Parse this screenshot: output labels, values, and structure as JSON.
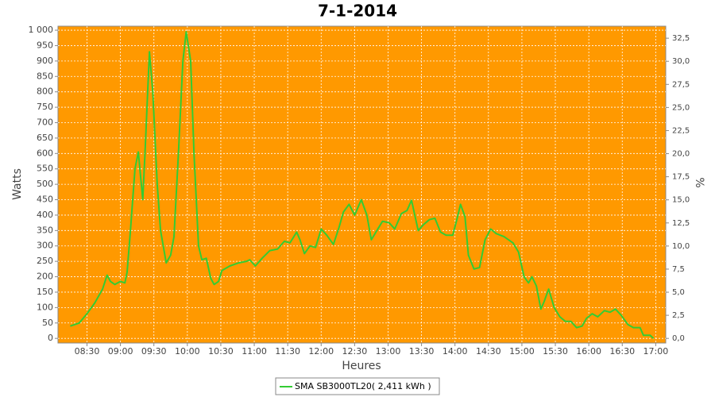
{
  "chart_data": {
    "type": "line",
    "title": "7-1-2014",
    "x_label": "Heures",
    "y_label": "Watts",
    "y2_label": "%",
    "x": [
      "08:15",
      "08:23",
      "08:30",
      "08:37",
      "08:44",
      "08:48",
      "08:51",
      "08:55",
      "09:00",
      "09:04",
      "09:06",
      "09:09",
      "09:13",
      "09:16",
      "09:20",
      "09:22",
      "09:26",
      "09:29",
      "09:33",
      "09:36",
      "09:41",
      "09:45",
      "09:48",
      "09:52",
      "09:56",
      "09:59",
      "10:03",
      "10:06",
      "10:10",
      "10:13",
      "10:17",
      "10:21",
      "10:24",
      "10:28",
      "10:31",
      "10:38",
      "10:46",
      "10:53",
      "10:56",
      "11:01",
      "11:07",
      "11:14",
      "11:21",
      "11:27",
      "11:32",
      "11:38",
      "11:41",
      "11:45",
      "11:50",
      "11:55",
      "12:00",
      "12:05",
      "12:11",
      "12:16",
      "12:20",
      "12:25",
      "12:30",
      "12:36",
      "12:41",
      "12:45",
      "12:50",
      "12:55",
      "13:01",
      "13:06",
      "13:12",
      "13:17",
      "13:21",
      "13:27",
      "13:32",
      "13:37",
      "13:42",
      "13:47",
      "13:52",
      "13:58",
      "14:02",
      "14:05",
      "14:09",
      "14:12",
      "14:17",
      "14:22",
      "14:27",
      "14:32",
      "14:37",
      "14:44",
      "14:52",
      "14:57",
      "15:02",
      "15:06",
      "15:09",
      "15:13",
      "15:17",
      "15:20",
      "15:24",
      "15:29",
      "15:34",
      "15:39",
      "15:44",
      "15:49",
      "15:54",
      "15:58",
      "16:03",
      "16:08",
      "16:14",
      "16:19",
      "16:24",
      "16:29",
      "16:35",
      "16:40",
      "16:46",
      "16:49",
      "16:55",
      "16:58"
    ],
    "series": [
      {
        "name": "SMA SB3000TL20( 2,411 kWh )",
        "color": "#33cc33",
        "values": [
          40,
          50,
          80,
          115,
          160,
          205,
          185,
          175,
          185,
          180,
          215,
          350,
          550,
          605,
          450,
          600,
          930,
          800,
          500,
          350,
          245,
          270,
          330,
          600,
          900,
          995,
          900,
          600,
          300,
          255,
          260,
          195,
          175,
          185,
          220,
          235,
          245,
          250,
          255,
          235,
          260,
          285,
          290,
          315,
          310,
          345,
          320,
          275,
          300,
          295,
          355,
          335,
          305,
          360,
          410,
          435,
          400,
          450,
          400,
          320,
          350,
          380,
          375,
          355,
          405,
          415,
          448,
          350,
          370,
          385,
          390,
          345,
          335,
          335,
          390,
          435,
          395,
          270,
          225,
          230,
          320,
          355,
          340,
          330,
          310,
          280,
          200,
          180,
          200,
          170,
          95,
          120,
          160,
          100,
          70,
          55,
          55,
          35,
          40,
          65,
          80,
          70,
          90,
          85,
          95,
          75,
          45,
          35,
          35,
          10,
          10,
          0
        ]
      }
    ],
    "xlim": [
      "08:04",
      "17:09"
    ],
    "xticks": [
      "08:30",
      "09:00",
      "09:30",
      "10:00",
      "10:30",
      "11:00",
      "11:30",
      "12:00",
      "12:30",
      "13:00",
      "13:30",
      "14:00",
      "14:30",
      "15:00",
      "15:30",
      "16:00",
      "16:30",
      "17:00"
    ],
    "ylim": [
      -15,
      1013
    ],
    "yticks": [
      0,
      50,
      100,
      150,
      200,
      250,
      300,
      350,
      400,
      450,
      500,
      550,
      600,
      650,
      700,
      750,
      800,
      850,
      900,
      950,
      {
        "value": 1000,
        "label": "1 000"
      }
    ],
    "y2lim": [
      -0.5,
      33.8
    ],
    "y2ticks": [
      {
        "value": 0,
        "label": "0,0"
      },
      {
        "value": 2.5,
        "label": "2,5"
      },
      {
        "value": 5,
        "label": "5,0"
      },
      {
        "value": 7.5,
        "label": "7,5"
      },
      {
        "value": 10,
        "label": "10,0"
      },
      {
        "value": 12.5,
        "label": "12,5"
      },
      {
        "value": 15,
        "label": "15,0"
      },
      {
        "value": 17.5,
        "label": "17,5"
      },
      {
        "value": 20,
        "label": "20,0"
      },
      {
        "value": 22.5,
        "label": "22,5"
      },
      {
        "value": 25,
        "label": "25,0"
      },
      {
        "value": 27.5,
        "label": "27,5"
      },
      {
        "value": 30,
        "label": "30,0"
      },
      {
        "value": 32.5,
        "label": "32,5"
      }
    ],
    "grid": true,
    "plot_background": "#ff9900",
    "legend": "bottom"
  }
}
